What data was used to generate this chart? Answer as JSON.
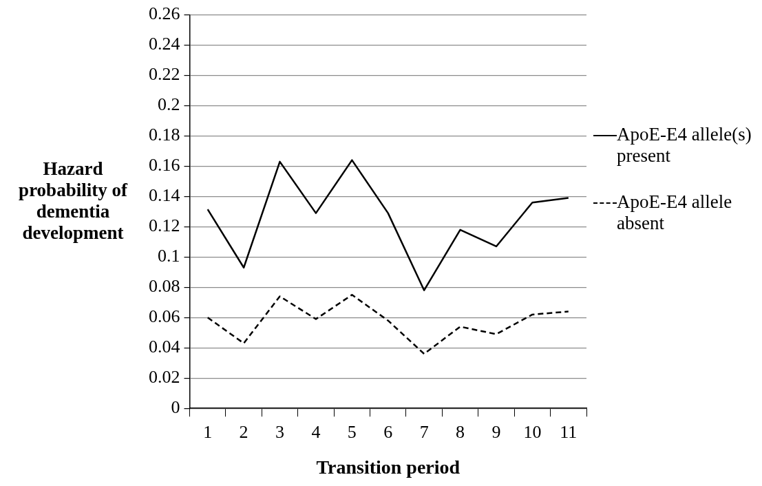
{
  "chart_data": {
    "type": "line",
    "xlabel": "Transition period",
    "ylabel": "Hazard probability of dementia development",
    "categories": [
      "1",
      "2",
      "3",
      "4",
      "5",
      "6",
      "7",
      "8",
      "9",
      "10",
      "11"
    ],
    "series": [
      {
        "name": "ApoE-E4 allele(s) present",
        "color": "#000000",
        "line_style": "solid",
        "values": [
          0.1315,
          0.093,
          0.163,
          0.129,
          0.164,
          0.129,
          0.078,
          0.118,
          0.107,
          0.136,
          0.139
        ]
      },
      {
        "name": "ApoE-E4 allele absent",
        "color": "#000000",
        "line_style": "dashed",
        "values": [
          0.06,
          0.043,
          0.074,
          0.059,
          0.075,
          0.058,
          0.036,
          0.054,
          0.049,
          0.062,
          0.064
        ]
      }
    ],
    "ylim": [
      0,
      0.26
    ],
    "yticks": [
      0,
      0.02,
      0.04,
      0.06,
      0.08,
      0.1,
      0.12,
      0.14,
      0.16,
      0.18,
      0.2,
      0.22,
      0.24,
      0.26
    ],
    "grid": "y",
    "legend": "right",
    "marker": "none"
  }
}
